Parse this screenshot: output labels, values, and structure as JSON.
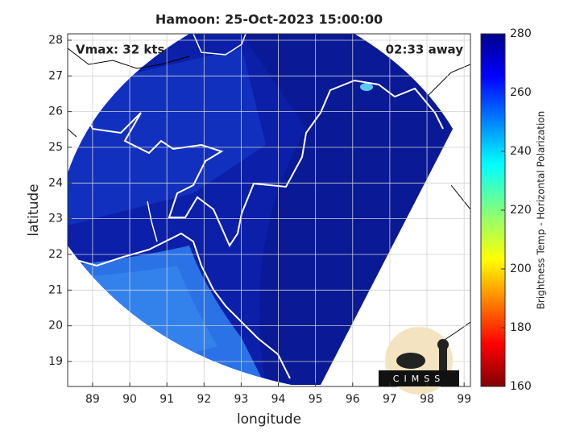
{
  "chart_data": {
    "type": "map",
    "title": "Hamoon: 25-Oct-2023 15:00:00",
    "xlabel": "longitude",
    "ylabel": "latitude",
    "xlim": [
      88.33,
      99.17
    ],
    "ylim": [
      18.3,
      28.18
    ],
    "xticks": [
      89,
      90,
      91,
      92,
      93,
      94,
      95,
      96,
      97,
      98,
      99
    ],
    "yticks": [
      19,
      20,
      21,
      22,
      23,
      24,
      25,
      26,
      27,
      28
    ],
    "grid": true,
    "annotations": [
      "Vmax: 32 kts",
      "02:33 away"
    ],
    "colorbar": {
      "label": "Brightness Temp - Horizontal Polarization",
      "lim": [
        160,
        280
      ],
      "ticks": [
        160,
        180,
        200,
        220,
        240,
        260,
        280
      ]
    },
    "logo_text": "CIMSS"
  }
}
